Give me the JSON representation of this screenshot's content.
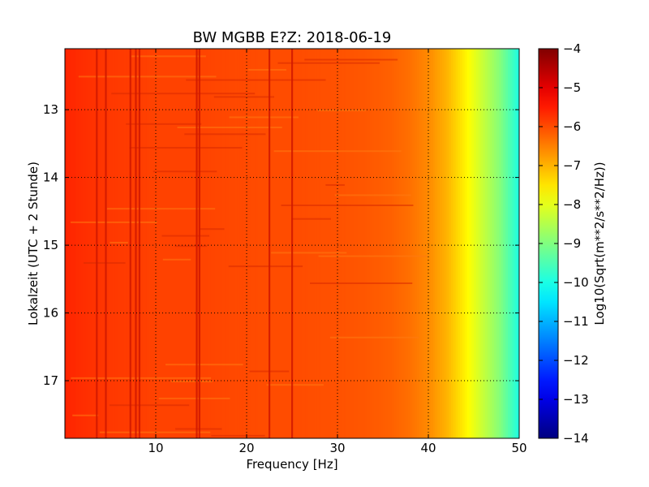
{
  "chart_data": {
    "type": "heatmap",
    "title": "BW MGBB E?Z: 2018-06-19",
    "xlabel": "Frequency [Hz]",
    "ylabel": "Lokalzeit (UTC + 2 Stunde)",
    "xlim": [
      0,
      50
    ],
    "ylim": [
      12.1,
      17.85
    ],
    "y_inverted": true,
    "x_ticks": [
      10,
      20,
      30,
      40,
      50
    ],
    "x_tick_labels": [
      "10",
      "20",
      "30",
      "40",
      "50"
    ],
    "y_ticks": [
      13,
      14,
      15,
      16,
      17
    ],
    "y_tick_labels": [
      "13",
      "14",
      "15",
      "16",
      "17"
    ],
    "grid": true,
    "colormap": "jet",
    "colorbar": {
      "label": "Log10(Sqrt(m**2/s**2/Hz))",
      "range": [
        -14,
        -4
      ],
      "ticks": [
        -4,
        -5,
        -6,
        -7,
        -8,
        -9,
        -10,
        -11,
        -12,
        -13,
        -14
      ],
      "tick_labels": [
        "−4",
        "−5",
        "−6",
        "−7",
        "−8",
        "−9",
        "−10",
        "−11",
        "−12",
        "−13",
        "−14"
      ]
    },
    "frequency_profile": {
      "frequency_hz": [
        0,
        2,
        5,
        8,
        10,
        14,
        18,
        22,
        26,
        30,
        33,
        36,
        38,
        40,
        42,
        44,
        46,
        48,
        50
      ],
      "log10_amplitude": [
        -5.6,
        -5.7,
        -5.8,
        -5.85,
        -5.9,
        -5.9,
        -5.95,
        -6.0,
        -6.0,
        -6.05,
        -6.1,
        -6.2,
        -6.35,
        -6.6,
        -7.0,
        -7.6,
        -8.3,
        -9.0,
        -10.0
      ]
    },
    "spectral_lines_hz": [
      3.5,
      4.5,
      7.2,
      7.8,
      8.2,
      14.5,
      14.8,
      22.5,
      25.0
    ]
  }
}
